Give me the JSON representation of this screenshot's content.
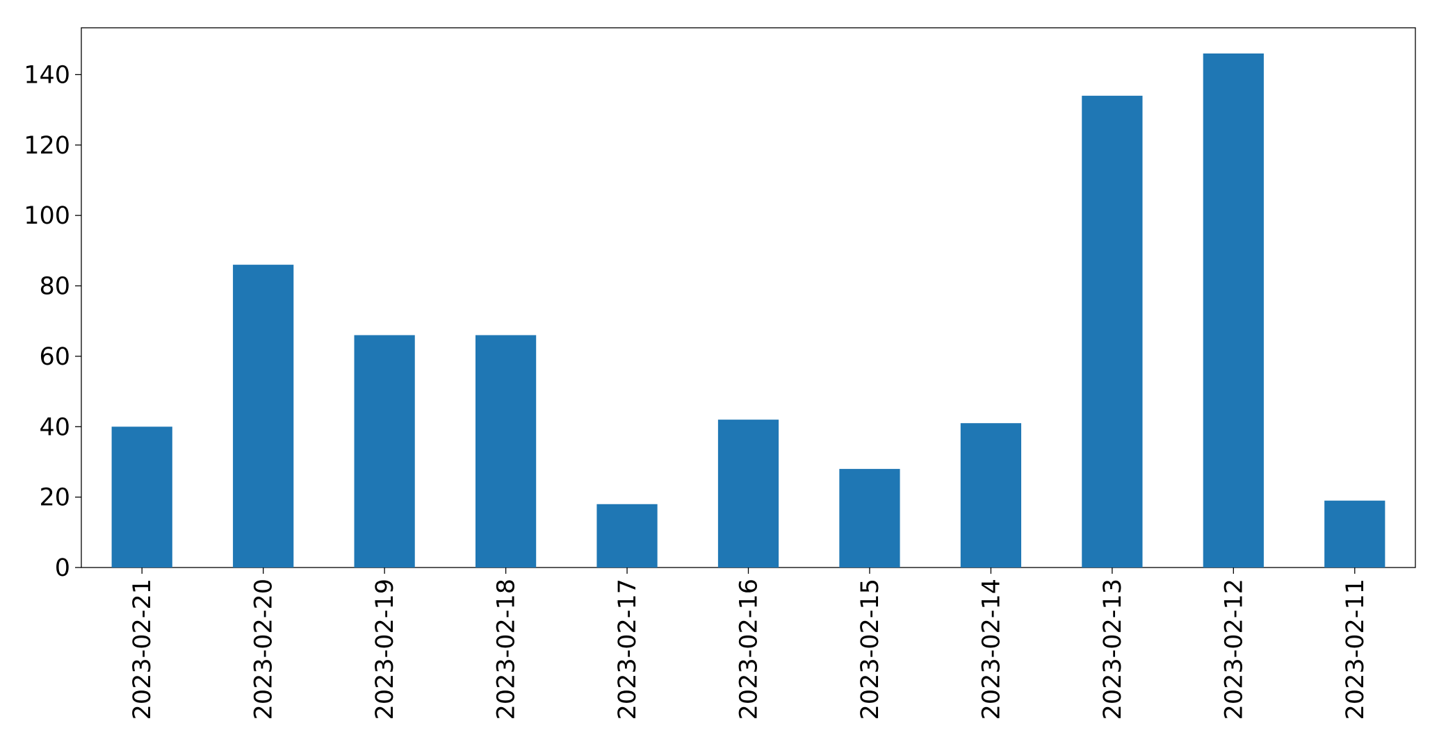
{
  "chart_data": {
    "type": "bar",
    "categories": [
      "2023-02-21",
      "2023-02-20",
      "2023-02-19",
      "2023-02-18",
      "2023-02-17",
      "2023-02-16",
      "2023-02-15",
      "2023-02-14",
      "2023-02-13",
      "2023-02-12",
      "2023-02-11"
    ],
    "values": [
      40,
      86,
      66,
      66,
      18,
      42,
      28,
      41,
      134,
      146,
      19
    ],
    "color": "#1f77b4",
    "ylim": [
      0,
      153.3
    ],
    "yticks": [
      0,
      20,
      40,
      60,
      80,
      100,
      120,
      140
    ],
    "grid": false
  }
}
